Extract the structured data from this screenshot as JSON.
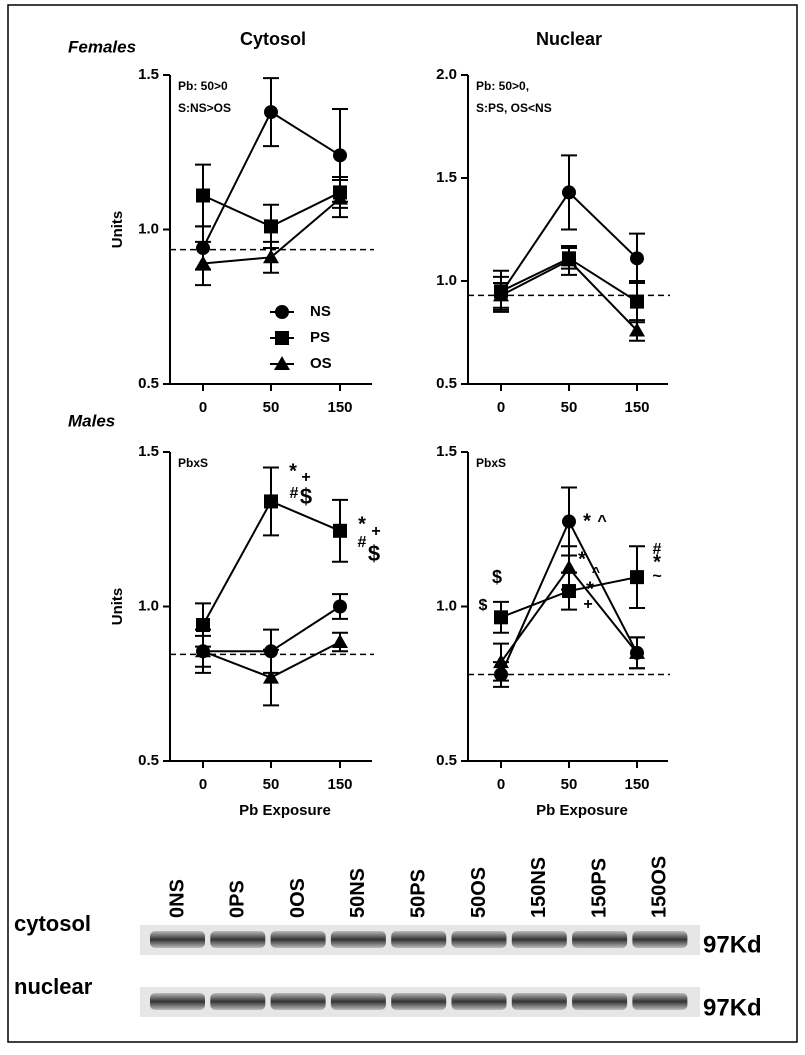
{
  "headers": {
    "columns": [
      "Cytosol",
      "Nuclear"
    ],
    "rows": [
      "Females",
      "Males"
    ]
  },
  "chart_data": [
    {
      "type": "line",
      "ylabel": "Units",
      "categories": [
        "0",
        "50",
        "150"
      ],
      "ylim": [
        0.5,
        1.5
      ],
      "yticks": [
        0.5,
        {
          "value": 1,
          "label": "1.0"
        },
        1.5
      ],
      "reference_line": 0.935,
      "notes": [
        "Pb: 50>0",
        "S:NS>OS"
      ],
      "legend": "bottom-right",
      "series": [
        {
          "name": "NS",
          "marker": "circle",
          "color": "#000000",
          "values": [
            0.94,
            1.38,
            1.24
          ],
          "errors": [
            0.07,
            0.11,
            0.15
          ]
        },
        {
          "name": "PS",
          "marker": "square",
          "color": "#000000",
          "values": [
            1.11,
            1.01,
            1.12
          ],
          "errors": [
            0.1,
            0.07,
            0.05
          ]
        },
        {
          "name": "OS",
          "marker": "triangle",
          "color": "#000000",
          "values": [
            0.89,
            0.91,
            1.1
          ],
          "errors": [
            0.07,
            0.05,
            0.06
          ]
        }
      ]
    },
    {
      "type": "line",
      "categories": [
        "0",
        "50",
        "150"
      ],
      "ylim": [
        0.5,
        2
      ],
      "yticks": [
        0.5,
        {
          "value": 1,
          "label": "1.0"
        },
        1.5,
        {
          "value": 2,
          "label": "2.0"
        }
      ],
      "reference_line": 0.93,
      "notes": [
        "Pb: 50>0,",
        "S:PS, OS<NS"
      ],
      "series": [
        {
          "name": "NS",
          "marker": "circle",
          "color": "#000000",
          "values": [
            0.94,
            1.43,
            1.11
          ],
          "errors": [
            0.08,
            0.18,
            0.12
          ]
        },
        {
          "name": "PS",
          "marker": "square",
          "color": "#000000",
          "values": [
            0.95,
            1.11,
            0.9
          ],
          "errors": [
            0.1,
            0.05,
            0.1
          ]
        },
        {
          "name": "OS",
          "marker": "triangle",
          "color": "#000000",
          "values": [
            0.93,
            1.1,
            0.76
          ],
          "errors": [
            0.06,
            0.07,
            0.05
          ]
        }
      ]
    },
    {
      "type": "line",
      "ylabel": "Units",
      "xlabel": "Pb Exposure",
      "categories": [
        "0",
        "50",
        "150"
      ],
      "ylim": [
        0.5,
        1.5
      ],
      "yticks": [
        0.5,
        {
          "value": 1,
          "label": "1.0"
        },
        1.5
      ],
      "reference_line": 0.845,
      "notes": [
        "PbxS"
      ],
      "sig_marks": [
        "*",
        "+",
        "#",
        "$",
        "*",
        "+",
        "#",
        "$"
      ],
      "series": [
        {
          "name": "NS",
          "marker": "circle",
          "color": "#000000",
          "values": [
            0.855,
            0.855,
            1.0
          ],
          "errors": [
            0.05,
            0.07,
            0.04
          ]
        },
        {
          "name": "PS",
          "marker": "square",
          "color": "#000000",
          "values": [
            0.94,
            1.34,
            1.245
          ],
          "errors": [
            0.07,
            0.11,
            0.1
          ]
        },
        {
          "name": "OS",
          "marker": "triangle",
          "color": "#000000",
          "values": [
            0.855,
            0.77,
            0.885
          ],
          "errors": [
            0.07,
            0.09,
            0.03
          ]
        }
      ]
    },
    {
      "type": "line",
      "xlabel": "Pb Exposure",
      "categories": [
        "0",
        "50",
        "150"
      ],
      "ylim": [
        0.5,
        1.5
      ],
      "yticks": [
        0.5,
        {
          "value": 1,
          "label": "1.0"
        },
        1.5
      ],
      "reference_line": 0.78,
      "notes": [
        "PbxS"
      ],
      "sig_marks": [
        "$",
        "$",
        "*",
        "^",
        "*",
        "^",
        "*",
        "+",
        "#",
        "*",
        "~"
      ],
      "series": [
        {
          "name": "NS",
          "marker": "circle",
          "color": "#000000",
          "values": [
            0.78,
            1.275,
            0.85
          ],
          "errors": [
            0.04,
            0.11,
            0.05
          ]
        },
        {
          "name": "PS",
          "marker": "square",
          "color": "#000000",
          "values": [
            0.965,
            1.05,
            1.095
          ],
          "errors": [
            0.05,
            0.06,
            0.1
          ]
        },
        {
          "name": "OS",
          "marker": "triangle",
          "color": "#000000",
          "values": [
            0.82,
            1.125,
            0.85
          ],
          "errors": [
            0.06,
            0.07,
            0.05
          ]
        }
      ]
    }
  ],
  "blot": {
    "lanes": [
      "0NS",
      "0PS",
      "0OS",
      "50NS",
      "50PS",
      "50OS",
      "150NS",
      "150PS",
      "150OS"
    ],
    "rows": [
      "cytosol",
      "nuclear"
    ],
    "sizes": [
      "97Kd",
      "97Kd"
    ]
  }
}
